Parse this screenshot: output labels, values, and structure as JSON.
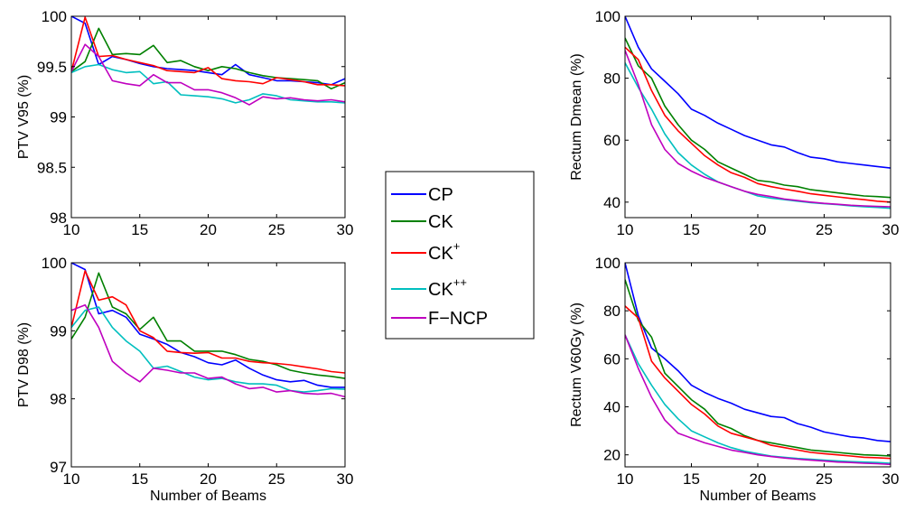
{
  "legend": {
    "entries": [
      {
        "name": "CP",
        "base": "CP",
        "sup": "",
        "color": "#0000ff"
      },
      {
        "name": "CK",
        "base": "CK",
        "sup": "",
        "color": "#008000"
      },
      {
        "name": "CK+",
        "base": "CK",
        "sup": "+",
        "color": "#ff0000"
      },
      {
        "name": "CK++",
        "base": "CK",
        "sup": "++",
        "color": "#00bfbf"
      },
      {
        "name": "F−NCP",
        "base": "F−NCP",
        "sup": "",
        "color": "#bf00bf"
      }
    ]
  },
  "chart_data": [
    {
      "type": "line",
      "ylabel": "PTV V95 (%)",
      "xlabel": "",
      "xlim": [
        10,
        30
      ],
      "ylim": [
        98,
        100
      ],
      "xticks": [
        "10",
        "15",
        "20",
        "25",
        "30"
      ],
      "yticks": [
        "98",
        "98.5",
        "99",
        "99.5",
        "100"
      ],
      "x": [
        10,
        11,
        12,
        13,
        14,
        15,
        16,
        17,
        18,
        19,
        20,
        21,
        22,
        23,
        24,
        25,
        26,
        27,
        28,
        29,
        30
      ],
      "series": [
        {
          "name": "CP",
          "values": [
            100,
            99.93,
            99.52,
            99.6,
            99.57,
            99.53,
            99.5,
            99.48,
            99.47,
            99.46,
            99.44,
            99.42,
            99.52,
            99.42,
            99.39,
            99.36,
            99.36,
            99.35,
            99.34,
            99.32,
            99.38
          ]
        },
        {
          "name": "CK",
          "values": [
            99.45,
            99.55,
            99.88,
            99.62,
            99.63,
            99.62,
            99.71,
            99.54,
            99.56,
            99.5,
            99.46,
            99.5,
            99.48,
            99.44,
            99.41,
            99.39,
            99.38,
            99.37,
            99.36,
            99.28,
            99.34
          ]
        },
        {
          "name": "CK+",
          "values": [
            99.45,
            99.99,
            99.6,
            99.61,
            99.57,
            99.54,
            99.51,
            99.46,
            99.45,
            99.44,
            99.49,
            99.38,
            99.36,
            99.35,
            99.33,
            99.39,
            99.37,
            99.35,
            99.32,
            99.32,
            99.31
          ]
        },
        {
          "name": "CK++",
          "values": [
            99.44,
            99.5,
            99.52,
            99.47,
            99.44,
            99.45,
            99.33,
            99.35,
            99.22,
            99.21,
            99.2,
            99.18,
            99.14,
            99.17,
            99.23,
            99.21,
            99.17,
            99.16,
            99.15,
            99.15,
            99.14
          ]
        },
        {
          "name": "F−NCP",
          "values": [
            99.45,
            99.72,
            99.6,
            99.36,
            99.33,
            99.31,
            99.42,
            99.34,
            99.34,
            99.27,
            99.27,
            99.24,
            99.19,
            99.12,
            99.2,
            99.18,
            99.19,
            99.17,
            99.16,
            99.17,
            99.15
          ]
        }
      ]
    },
    {
      "type": "line",
      "ylabel": "PTV D98 (%)",
      "xlabel": "Number of Beams",
      "xlim": [
        10,
        30
      ],
      "ylim": [
        97,
        100
      ],
      "xticks": [
        "10",
        "15",
        "20",
        "25",
        "30"
      ],
      "yticks": [
        "97",
        "98",
        "99",
        "100"
      ],
      "x": [
        10,
        11,
        12,
        13,
        14,
        15,
        16,
        17,
        18,
        19,
        20,
        21,
        22,
        23,
        24,
        25,
        26,
        27,
        28,
        29,
        30
      ],
      "series": [
        {
          "name": "CP",
          "values": [
            100,
            99.9,
            99.25,
            99.3,
            99.2,
            98.95,
            98.88,
            98.8,
            98.68,
            98.62,
            98.53,
            98.5,
            98.57,
            98.45,
            98.35,
            98.28,
            98.25,
            98.27,
            98.2,
            98.17,
            98.17
          ]
        },
        {
          "name": "CK",
          "values": [
            98.88,
            99.2,
            99.85,
            99.35,
            99.25,
            99.02,
            99.2,
            98.85,
            98.85,
            98.7,
            98.7,
            98.7,
            98.65,
            98.58,
            98.55,
            98.5,
            98.42,
            98.38,
            98.35,
            98.33,
            98.3
          ]
        },
        {
          "name": "CK+",
          "values": [
            99.05,
            99.88,
            99.45,
            99.5,
            99.38,
            99.0,
            98.9,
            98.7,
            98.68,
            98.67,
            98.68,
            98.6,
            98.6,
            98.55,
            98.53,
            98.52,
            98.5,
            98.47,
            98.44,
            98.4,
            98.38
          ]
        },
        {
          "name": "CK++",
          "values": [
            99.05,
            99.3,
            99.35,
            99.05,
            98.85,
            98.7,
            98.45,
            98.48,
            98.4,
            98.32,
            98.28,
            98.3,
            98.25,
            98.22,
            98.22,
            98.2,
            98.12,
            98.1,
            98.12,
            98.15,
            98.14
          ]
        },
        {
          "name": "F−NCP",
          "values": [
            99.3,
            99.38,
            99.05,
            98.55,
            98.38,
            98.25,
            98.45,
            98.42,
            98.38,
            98.38,
            98.3,
            98.32,
            98.22,
            98.15,
            98.17,
            98.1,
            98.12,
            98.08,
            98.07,
            98.08,
            98.03
          ]
        }
      ]
    },
    {
      "type": "line",
      "ylabel": "Rectum Dmean (%)",
      "xlabel": "",
      "xlim": [
        10,
        30
      ],
      "ylim": [
        35,
        100
      ],
      "xticks": [
        "10",
        "15",
        "20",
        "25",
        "30"
      ],
      "yticks": [
        "40",
        "60",
        "80",
        "100"
      ],
      "x": [
        10,
        11,
        12,
        13,
        14,
        15,
        16,
        17,
        18,
        19,
        20,
        21,
        22,
        23,
        24,
        25,
        26,
        27,
        28,
        29,
        30
      ],
      "series": [
        {
          "name": "CP",
          "values": [
            100,
            90,
            83,
            79,
            75,
            70,
            68,
            65.5,
            63.5,
            61.5,
            60,
            58.5,
            57.8,
            56,
            54.5,
            54,
            53,
            52.5,
            52,
            51.5,
            51
          ]
        },
        {
          "name": "CK",
          "values": [
            93,
            84,
            80,
            71,
            65,
            60,
            57,
            53,
            51,
            49,
            47,
            46.5,
            45.5,
            45,
            44,
            43.5,
            43,
            42.5,
            42,
            41.8,
            41.5
          ]
        },
        {
          "name": "CK+",
          "values": [
            90,
            86,
            76,
            68,
            63,
            59,
            55,
            52,
            49.5,
            48,
            46,
            45,
            44.2,
            43.5,
            42.7,
            42.2,
            41.7,
            41.2,
            40.8,
            40.3,
            40
          ]
        },
        {
          "name": "CK++",
          "values": [
            85,
            77,
            70,
            62,
            56,
            52,
            49,
            46.5,
            45,
            43.5,
            42,
            41.3,
            40.8,
            40.3,
            39.8,
            39.5,
            39.2,
            38.8,
            38.5,
            38.3,
            38
          ]
        },
        {
          "name": "F−NCP",
          "values": [
            89,
            78,
            65,
            57,
            52.5,
            50,
            48,
            46.5,
            45,
            43.5,
            42.5,
            41.8,
            41,
            40.5,
            40,
            39.6,
            39.3,
            39,
            38.8,
            38.6,
            38.5
          ]
        }
      ]
    },
    {
      "type": "line",
      "ylabel": "Rectum V60Gy (%)",
      "xlabel": "Number of Beams",
      "xlim": [
        10,
        30
      ],
      "ylim": [
        15,
        100
      ],
      "xticks": [
        "10",
        "15",
        "20",
        "25",
        "30"
      ],
      "yticks": [
        "20",
        "40",
        "60",
        "80",
        "100"
      ],
      "x": [
        10,
        11,
        12,
        13,
        14,
        15,
        16,
        17,
        18,
        19,
        20,
        21,
        22,
        23,
        24,
        25,
        26,
        27,
        28,
        29,
        30
      ],
      "series": [
        {
          "name": "CP",
          "values": [
            100,
            78,
            64.5,
            60,
            55,
            49,
            46,
            43.5,
            41.5,
            39,
            37.5,
            36,
            35.5,
            33,
            31.5,
            29.5,
            28.5,
            27.5,
            27,
            26,
            25.5
          ]
        },
        {
          "name": "CK",
          "values": [
            93,
            76,
            69,
            54,
            48.5,
            43,
            39,
            33,
            31,
            28,
            26,
            25,
            24,
            23,
            22,
            21.5,
            21,
            20.5,
            20,
            19.8,
            19.5
          ]
        },
        {
          "name": "CK+",
          "values": [
            82,
            77,
            59,
            52,
            46.5,
            41,
            37,
            32,
            29,
            27.5,
            26,
            24,
            23,
            22,
            21,
            20.5,
            20,
            19.5,
            19,
            18.8,
            18.5
          ]
        },
        {
          "name": "CK++",
          "values": [
            70,
            58,
            49,
            41,
            35,
            30,
            27.5,
            25,
            23,
            21.5,
            20.5,
            19.5,
            19,
            18.5,
            18.2,
            17.8,
            17.5,
            17.2,
            17,
            16.8,
            16.5
          ]
        },
        {
          "name": "F−NCP",
          "values": [
            70,
            56,
            44,
            34.5,
            29,
            27,
            25,
            23.5,
            22,
            21,
            20,
            19.3,
            18.7,
            18.2,
            17.8,
            17.4,
            17,
            16.8,
            16.5,
            16.3,
            16
          ]
        }
      ]
    }
  ]
}
